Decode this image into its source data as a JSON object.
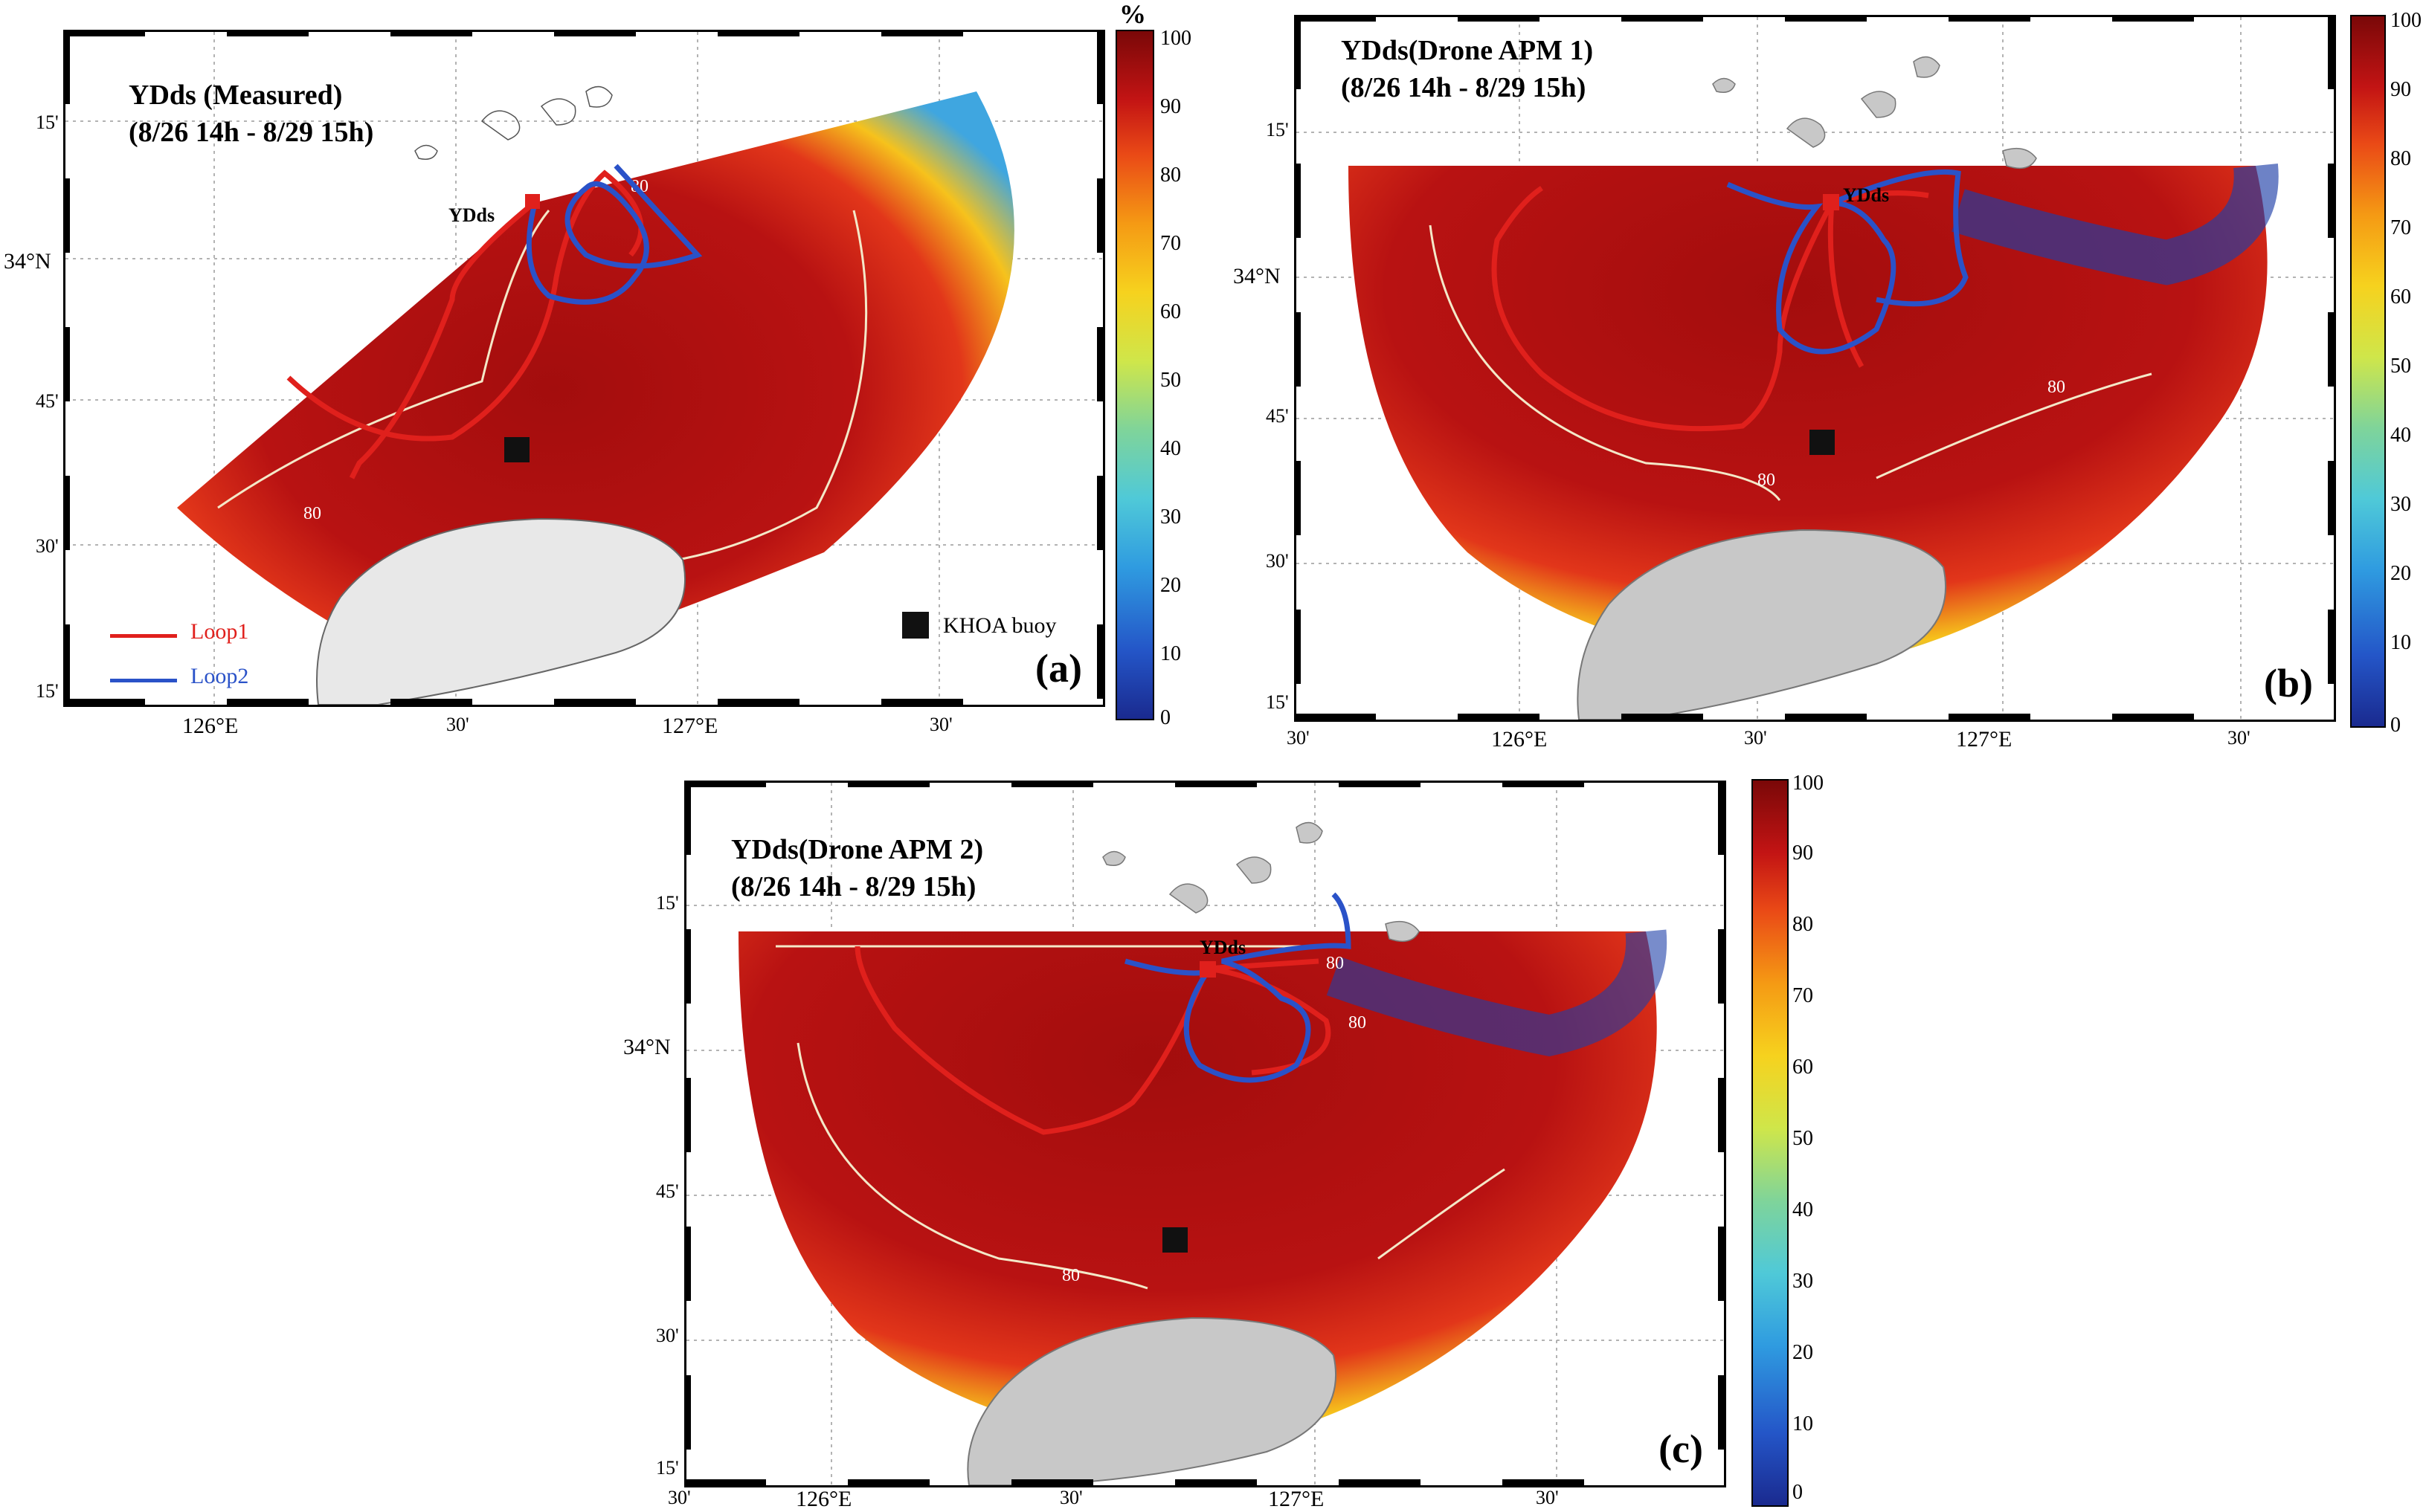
{
  "colors": {
    "loop1": "#e0201c",
    "loop2": "#2a52c8",
    "land": "#c8c8c8",
    "buoy": "#111111"
  },
  "panels": [
    {
      "title_line1": "YDds (Measured)",
      "title_line2": "(8/26 14h - 8/29 15h)",
      "letter": "(a)",
      "station_label": "YDds"
    },
    {
      "title_line1": "YDds(Drone APM 1)",
      "title_line2": "(8/26 14h - 8/29 15h)",
      "letter": "(b)",
      "station_label": "YDds"
    },
    {
      "title_line1": "YDds(Drone APM 2)",
      "title_line2": "(8/26 14h - 8/29 15h)",
      "letter": "(c)",
      "station_label": "YDds"
    }
  ],
  "lat_ticks": [
    "15'",
    "34°N",
    "45'",
    "30'",
    "15'"
  ],
  "lon_ticks_a": [
    "126°E",
    "30'",
    "127°E",
    "30'"
  ],
  "lon_ticks_bc": [
    "30'",
    "126°E",
    "30'",
    "127°E",
    "30'"
  ],
  "contour_label": "80",
  "colorbar": {
    "unit": "%",
    "ticks": [
      "100",
      "90",
      "80",
      "70",
      "60",
      "50",
      "40",
      "30",
      "20",
      "10",
      "0"
    ]
  },
  "legend": {
    "loop1": "Loop1",
    "loop2": "Loop2",
    "buoy": "KHOA buoy"
  }
}
